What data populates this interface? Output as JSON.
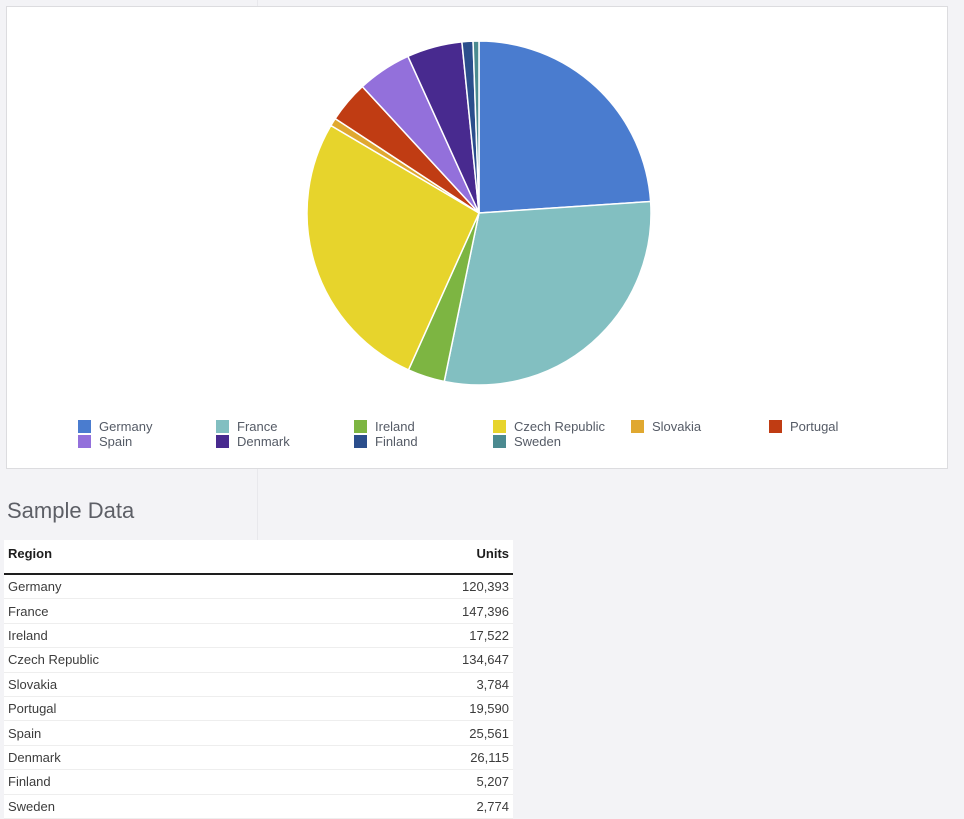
{
  "chart_data": {
    "type": "pie",
    "categories": [
      "Germany",
      "France",
      "Ireland",
      "Czech Republic",
      "Slovakia",
      "Portugal",
      "Spain",
      "Denmark",
      "Finland",
      "Sweden"
    ],
    "values": [
      120393,
      147396,
      17522,
      134647,
      3784,
      19590,
      25561,
      26115,
      5207,
      2774
    ],
    "colors": [
      "#4a7ccf",
      "#82bfc1",
      "#7db542",
      "#e7d42c",
      "#e0a830",
      "#c03c13",
      "#9370db",
      "#482a8f",
      "#2b4e8c",
      "#4b8a90"
    ],
    "legend_position": "bottom"
  },
  "table": {
    "title": "Sample Data",
    "headers": [
      "Region",
      "Units"
    ],
    "rows": [
      [
        "Germany",
        "120,393"
      ],
      [
        "France",
        "147,396"
      ],
      [
        "Ireland",
        "17,522"
      ],
      [
        "Czech Republic",
        "134,647"
      ],
      [
        "Slovakia",
        "3,784"
      ],
      [
        "Portugal",
        "19,590"
      ],
      [
        "Spain",
        "25,561"
      ],
      [
        "Denmark",
        "26,115"
      ],
      [
        "Finland",
        "5,207"
      ],
      [
        "Sweden",
        "2,774"
      ]
    ]
  }
}
